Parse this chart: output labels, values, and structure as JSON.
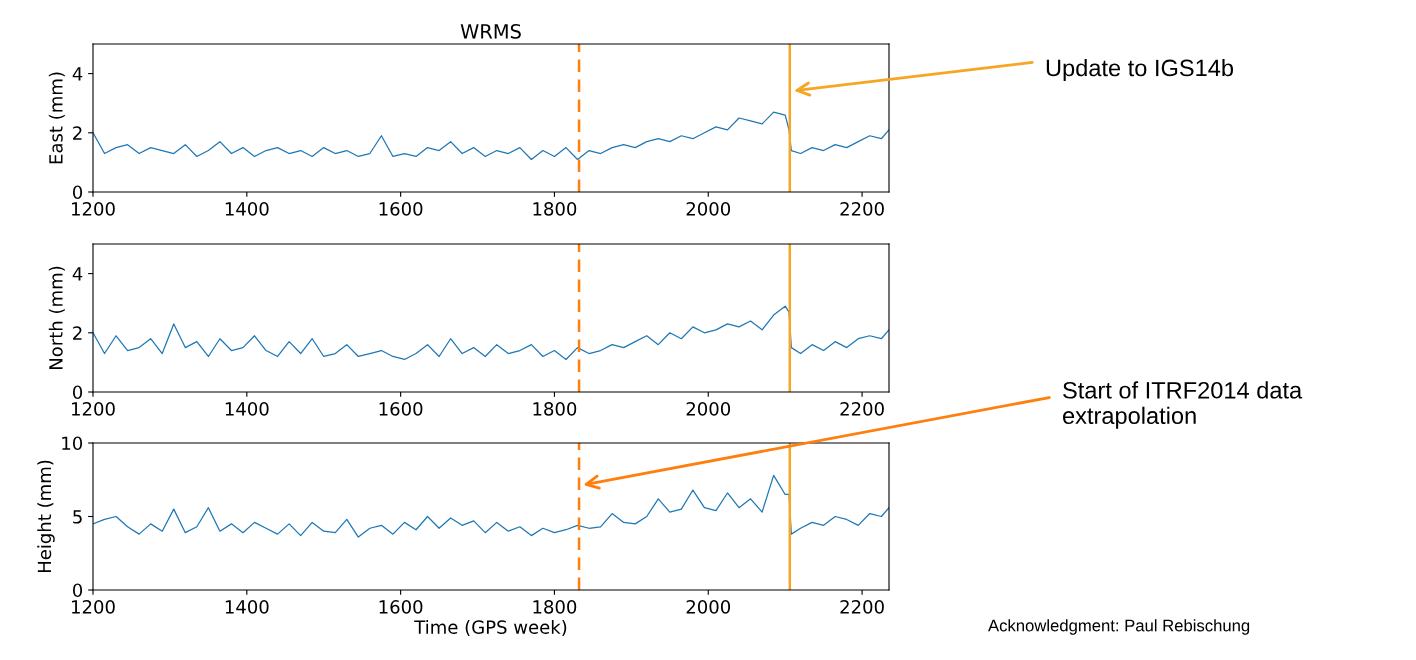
{
  "chart_data": [
    {
      "type": "line",
      "title": "WRMS",
      "ylabel": "East (mm)",
      "x": [
        1200,
        1215,
        1230,
        1245,
        1260,
        1275,
        1290,
        1305,
        1320,
        1335,
        1350,
        1365,
        1380,
        1395,
        1410,
        1425,
        1440,
        1455,
        1470,
        1485,
        1500,
        1515,
        1530,
        1545,
        1560,
        1575,
        1590,
        1605,
        1620,
        1635,
        1650,
        1665,
        1680,
        1695,
        1710,
        1725,
        1740,
        1755,
        1770,
        1785,
        1800,
        1815,
        1830,
        1845,
        1860,
        1875,
        1890,
        1905,
        1920,
        1935,
        1950,
        1965,
        1980,
        1995,
        2010,
        2025,
        2040,
        2055,
        2070,
        2085,
        2100,
        2105,
        2108,
        2120,
        2135,
        2150,
        2165,
        2180,
        2195,
        2210,
        2225,
        2235
      ],
      "series": [
        {
          "color": "#1f77b4",
          "values": [
            2.0,
            1.3,
            1.5,
            1.6,
            1.3,
            1.5,
            1.4,
            1.3,
            1.6,
            1.2,
            1.4,
            1.7,
            1.3,
            1.5,
            1.2,
            1.4,
            1.5,
            1.3,
            1.4,
            1.2,
            1.5,
            1.3,
            1.4,
            1.2,
            1.3,
            1.9,
            1.2,
            1.3,
            1.2,
            1.5,
            1.4,
            1.7,
            1.3,
            1.5,
            1.2,
            1.4,
            1.3,
            1.5,
            1.1,
            1.4,
            1.2,
            1.5,
            1.1,
            1.4,
            1.3,
            1.5,
            1.6,
            1.5,
            1.7,
            1.8,
            1.7,
            1.9,
            1.8,
            2.0,
            2.2,
            2.1,
            2.5,
            2.4,
            2.3,
            2.7,
            2.6,
            2.1,
            1.4,
            1.3,
            1.5,
            1.4,
            1.6,
            1.5,
            1.7,
            1.9,
            1.8,
            2.1
          ]
        }
      ],
      "xlim": [
        1200,
        2235
      ],
      "xticks": [
        1200,
        1400,
        1600,
        1800,
        2000,
        2200
      ],
      "ylim": [
        0,
        5
      ],
      "yticks": [
        0,
        2,
        4
      ],
      "grid": false,
      "ref_lines": [
        {
          "axis": "x",
          "value": 1832,
          "color": "#ff7f0e",
          "line_style": "dashed"
        },
        {
          "axis": "x",
          "value": 2106,
          "color": "#f5a623",
          "line_style": "solid"
        }
      ],
      "annotations": [
        "Update to IGS14b"
      ]
    },
    {
      "type": "line",
      "ylabel": "North (mm)",
      "x": [
        1200,
        1215,
        1230,
        1245,
        1260,
        1275,
        1290,
        1305,
        1320,
        1335,
        1350,
        1365,
        1380,
        1395,
        1410,
        1425,
        1440,
        1455,
        1470,
        1485,
        1500,
        1515,
        1530,
        1545,
        1560,
        1575,
        1590,
        1605,
        1620,
        1635,
        1650,
        1665,
        1680,
        1695,
        1710,
        1725,
        1740,
        1755,
        1770,
        1785,
        1800,
        1815,
        1830,
        1845,
        1860,
        1875,
        1890,
        1905,
        1920,
        1935,
        1950,
        1965,
        1980,
        1995,
        2010,
        2025,
        2040,
        2055,
        2070,
        2085,
        2100,
        2105,
        2108,
        2120,
        2135,
        2150,
        2165,
        2180,
        2195,
        2210,
        2225,
        2235
      ],
      "series": [
        {
          "color": "#1f77b4",
          "values": [
            2.0,
            1.3,
            1.9,
            1.4,
            1.5,
            1.8,
            1.3,
            2.3,
            1.5,
            1.7,
            1.2,
            1.8,
            1.4,
            1.5,
            1.9,
            1.4,
            1.2,
            1.7,
            1.3,
            1.8,
            1.2,
            1.3,
            1.6,
            1.2,
            1.3,
            1.4,
            1.2,
            1.1,
            1.3,
            1.6,
            1.2,
            1.8,
            1.3,
            1.5,
            1.2,
            1.6,
            1.3,
            1.4,
            1.6,
            1.2,
            1.4,
            1.1,
            1.5,
            1.3,
            1.4,
            1.6,
            1.5,
            1.7,
            1.9,
            1.6,
            2.0,
            1.8,
            2.2,
            2.0,
            2.1,
            2.3,
            2.2,
            2.4,
            2.1,
            2.6,
            2.9,
            2.7,
            1.5,
            1.3,
            1.6,
            1.4,
            1.7,
            1.5,
            1.8,
            1.9,
            1.8,
            2.1
          ]
        }
      ],
      "xlim": [
        1200,
        2235
      ],
      "xticks": [
        1200,
        1400,
        1600,
        1800,
        2000,
        2200
      ],
      "ylim": [
        0,
        5
      ],
      "yticks": [
        0,
        2,
        4
      ],
      "grid": false,
      "ref_lines": [
        {
          "axis": "x",
          "value": 1832,
          "color": "#ff7f0e",
          "line_style": "dashed"
        },
        {
          "axis": "x",
          "value": 2106,
          "color": "#f5a623",
          "line_style": "solid"
        }
      ]
    },
    {
      "type": "line",
      "ylabel": "Height (mm)",
      "xlabel": "Time (GPS week)",
      "x": [
        1200,
        1215,
        1230,
        1245,
        1260,
        1275,
        1290,
        1305,
        1320,
        1335,
        1350,
        1365,
        1380,
        1395,
        1410,
        1425,
        1440,
        1455,
        1470,
        1485,
        1500,
        1515,
        1530,
        1545,
        1560,
        1575,
        1590,
        1605,
        1620,
        1635,
        1650,
        1665,
        1680,
        1695,
        1710,
        1725,
        1740,
        1755,
        1770,
        1785,
        1800,
        1815,
        1830,
        1845,
        1860,
        1875,
        1890,
        1905,
        1920,
        1935,
        1950,
        1965,
        1980,
        1995,
        2010,
        2025,
        2040,
        2055,
        2070,
        2085,
        2100,
        2105,
        2108,
        2120,
        2135,
        2150,
        2165,
        2180,
        2195,
        2210,
        2225,
        2235
      ],
      "series": [
        {
          "color": "#1f77b4",
          "values": [
            4.5,
            4.8,
            5.0,
            4.3,
            3.8,
            4.5,
            4.0,
            5.5,
            3.9,
            4.3,
            5.6,
            4.0,
            4.5,
            3.9,
            4.6,
            4.2,
            3.8,
            4.5,
            3.7,
            4.6,
            4.0,
            3.9,
            4.8,
            3.6,
            4.2,
            4.4,
            3.8,
            4.6,
            4.1,
            5.0,
            4.2,
            4.9,
            4.4,
            4.7,
            3.9,
            4.6,
            4.0,
            4.3,
            3.7,
            4.2,
            3.9,
            4.1,
            4.4,
            4.2,
            4.3,
            5.2,
            4.6,
            4.5,
            5.0,
            6.2,
            5.3,
            5.5,
            6.8,
            5.6,
            5.4,
            6.6,
            5.6,
            6.2,
            5.3,
            7.8,
            6.5,
            6.5,
            3.8,
            4.2,
            4.6,
            4.4,
            5.0,
            4.8,
            4.4,
            5.2,
            5.0,
            5.6
          ]
        }
      ],
      "xlim": [
        1200,
        2235
      ],
      "xticks": [
        1200,
        1400,
        1600,
        1800,
        2000,
        2200
      ],
      "ylim": [
        0,
        10
      ],
      "yticks": [
        0,
        5,
        10
      ],
      "grid": false,
      "ref_lines": [
        {
          "axis": "x",
          "value": 1832,
          "color": "#ff7f0e",
          "line_style": "dashed"
        },
        {
          "axis": "x",
          "value": 2106,
          "color": "#f5a623",
          "line_style": "solid"
        }
      ],
      "annotations": [
        "Start of ITRF2014 data extrapolation",
        "Acknowledgment: Paul Rebischung"
      ]
    }
  ]
}
